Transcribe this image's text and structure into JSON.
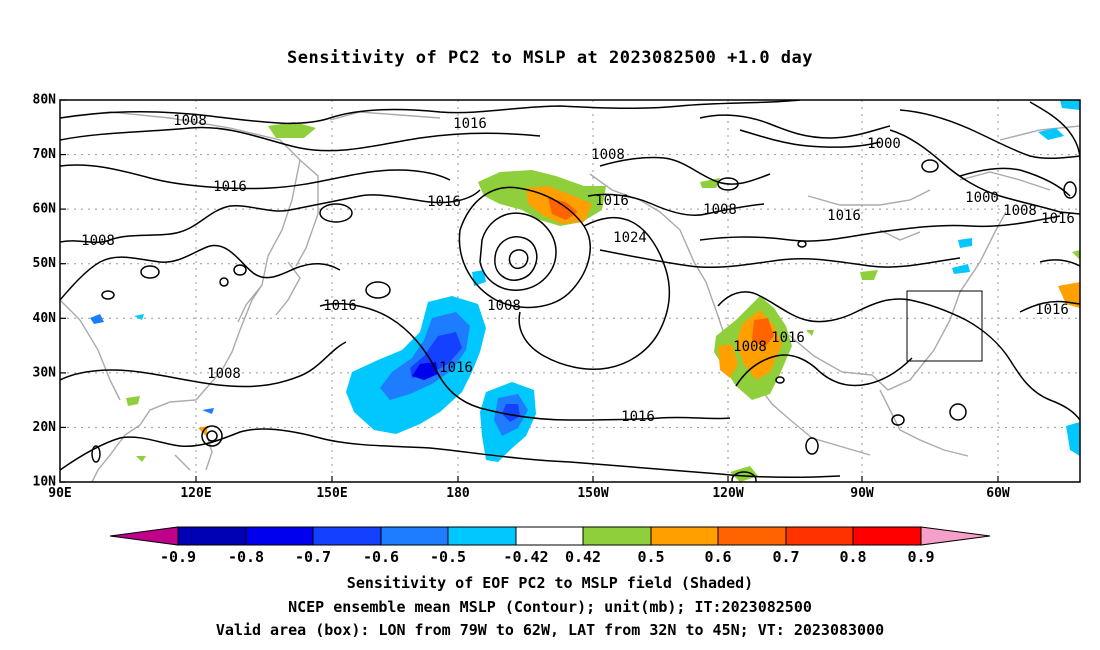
{
  "title": "Sensitivity of PC2 to MSLP at 2023082500 +1.0 day",
  "lat_labels": [
    "80N",
    "70N",
    "60N",
    "50N",
    "40N",
    "30N",
    "20N",
    "10N"
  ],
  "lon_labels": [
    "90E",
    "120E",
    "150E",
    "180",
    "150W",
    "120W",
    "90W",
    "60W"
  ],
  "contour_labels": {
    "c1": "1008",
    "c2": "1016",
    "c3": "1008",
    "c4": "1000",
    "c5": "1016",
    "c6": "1016",
    "c7": "1008",
    "c8": "1016",
    "c9": "1000",
    "c10": "1008",
    "c11": "1016",
    "c12": "1008",
    "c13": "1024",
    "c14": "1008",
    "c15": "1016",
    "c16": "1008",
    "c17": "1016",
    "c18": "1016",
    "c19": "1016",
    "c20": "1008",
    "c21": "1016"
  },
  "colorbar": {
    "labels": [
      "-0.9",
      "-0.8",
      "-0.7",
      "-0.6",
      "-0.5",
      "-0.42",
      "0.42",
      "0.5",
      "0.6",
      "0.7",
      "0.8",
      "0.9"
    ],
    "colors": [
      "#c0008a",
      "#0000b4",
      "#0000ee",
      "#1440ff",
      "#1e7cff",
      "#00c8ff",
      "#ffffff",
      "#8fcf3c",
      "#ffa000",
      "#ff6400",
      "#ff3200",
      "#ff0000",
      "#f5a0c8"
    ]
  },
  "captions": {
    "line1": "Sensitivity of EOF PC2 to MSLP field (Shaded)",
    "line2": "NCEP ensemble mean MSLP (Contour); unit(mb); IT:2023082500",
    "line3": "Valid area (box): LON from 79W to 62W, LAT from 32N to 45N; VT: 2023083000"
  },
  "valid_box": {
    "lon_from": "79W",
    "lon_to": "62W",
    "lat_from": "32N",
    "lat_to": "45N"
  }
}
